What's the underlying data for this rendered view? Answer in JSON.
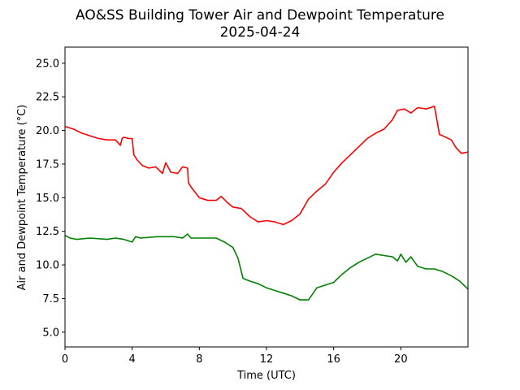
{
  "chart_data": {
    "type": "line",
    "title": "AO&SS Building Tower Air and Dewpoint Temperature",
    "subtitle": "2025-04-24",
    "xlabel": "Time (UTC)",
    "ylabel": "Air and Dewpoint Temperature (°C)",
    "xlim": [
      0,
      24
    ],
    "ylim": [
      3.9,
      26.2
    ],
    "xticks": [
      0,
      4,
      8,
      12,
      16,
      20
    ],
    "yticks": [
      5.0,
      7.5,
      10.0,
      12.5,
      15.0,
      17.5,
      20.0,
      22.5,
      25.0
    ],
    "grid": false,
    "legend": "none",
    "series": [
      {
        "color": "#ff0000",
        "x": [
          0,
          0.5,
          1,
          1.5,
          2,
          2.5,
          3,
          3.3,
          3.4,
          3.5,
          3.8,
          4.0,
          4.1,
          4.3,
          4.6,
          5.0,
          5.4,
          5.8,
          6.0,
          6.3,
          6.7,
          7.0,
          7.3,
          7.35,
          7.5,
          8.0,
          8.5,
          9.0,
          9.3,
          9.7,
          10.0,
          10.5,
          11.0,
          11.5,
          12.0,
          12.5,
          13.0,
          13.5,
          14.0,
          14.5,
          15.0,
          15.5,
          16.0,
          16.5,
          17.0,
          17.5,
          18.0,
          18.5,
          19.0,
          19.5,
          19.8,
          20.2,
          20.6,
          21.0,
          21.5,
          22.0,
          22.3,
          22.5,
          23.0,
          23.3,
          23.6,
          24.0
        ],
        "values": [
          20.3,
          20.1,
          19.8,
          19.6,
          19.4,
          19.3,
          19.3,
          18.9,
          19.4,
          19.5,
          19.4,
          19.4,
          18.2,
          17.8,
          17.4,
          17.2,
          17.3,
          16.8,
          17.6,
          16.9,
          16.8,
          17.3,
          17.2,
          16.1,
          15.8,
          15.0,
          14.8,
          14.8,
          15.1,
          14.6,
          14.3,
          14.2,
          13.6,
          13.2,
          13.3,
          13.2,
          13.0,
          13.3,
          13.8,
          14.9,
          15.5,
          16.0,
          16.9,
          17.6,
          18.2,
          18.8,
          19.4,
          19.8,
          20.1,
          20.8,
          21.5,
          21.6,
          21.3,
          21.7,
          21.6,
          21.8,
          19.7,
          19.6,
          19.3,
          18.7,
          18.3,
          18.4
        ]
      },
      {
        "color": "#008000",
        "x": [
          0,
          0.3,
          0.7,
          1.5,
          2.5,
          3.0,
          3.5,
          4.0,
          4.2,
          4.5,
          5.5,
          6.5,
          7.0,
          7.3,
          7.5,
          8.5,
          9.0,
          9.5,
          10.0,
          10.3,
          10.6,
          11.0,
          11.5,
          12.0,
          12.5,
          13.0,
          13.5,
          14.0,
          14.5,
          15.0,
          15.5,
          16.0,
          16.5,
          17.0,
          17.5,
          18.0,
          18.5,
          19.0,
          19.5,
          19.8,
          20.0,
          20.3,
          20.6,
          21.0,
          21.5,
          22.0,
          22.5,
          23.0,
          23.5,
          24.0
        ],
        "values": [
          12.2,
          12.0,
          11.9,
          12.0,
          11.9,
          12.0,
          11.9,
          11.7,
          12.1,
          12.0,
          12.1,
          12.1,
          12.0,
          12.3,
          12.0,
          12.0,
          12.0,
          11.7,
          11.3,
          10.5,
          9.0,
          8.8,
          8.6,
          8.3,
          8.1,
          7.9,
          7.7,
          7.4,
          7.4,
          8.3,
          8.5,
          8.7,
          9.3,
          9.8,
          10.2,
          10.5,
          10.8,
          10.7,
          10.6,
          10.3,
          10.8,
          10.2,
          10.6,
          9.9,
          9.7,
          9.7,
          9.5,
          9.2,
          8.8,
          8.2
        ]
      }
    ]
  }
}
